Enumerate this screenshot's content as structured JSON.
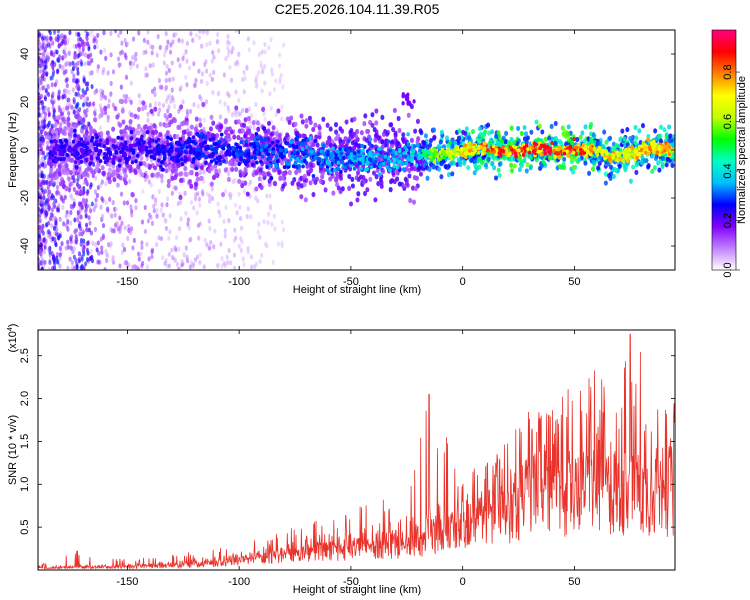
{
  "chart_data": [
    {
      "type": "heatmap",
      "title": "C2E5.2026.104.11.39.R05",
      "xlabel": "Height of straight line (km)",
      "ylabel": "Frequency (Hz)",
      "xlim": [
        -190,
        95
      ],
      "ylim": [
        -50,
        50
      ],
      "xticks": [
        -150,
        -100,
        -50,
        0,
        50
      ],
      "yticks": [
        -40,
        -20,
        0,
        20,
        40
      ],
      "colorbar": {
        "label": "Normalized spectral amplitude",
        "range": [
          0,
          0.97
        ],
        "ticks": [
          "0.0",
          "0.2",
          "0.4",
          "0.6",
          "0.8"
        ],
        "colors": [
          "#ffffff",
          "#c080ff",
          "#8000ff",
          "#0000ff",
          "#00c0ff",
          "#00ffc0",
          "#00ff00",
          "#c0ff00",
          "#ffff00",
          "#ff8000",
          "#ff0000",
          "#ff0080"
        ]
      },
      "ridge": {
        "description_points": [
          {
            "x": -185,
            "freq": 0,
            "amp": 0.25
          },
          {
            "x": -150,
            "freq": 0,
            "amp": 0.25
          },
          {
            "x": -100,
            "freq": 0,
            "amp": 0.3
          },
          {
            "x": -60,
            "freq": -3,
            "amp": 0.35
          },
          {
            "x": -20,
            "freq": -3,
            "amp": 0.4
          },
          {
            "x": -15,
            "freq": -2,
            "amp": 0.6
          },
          {
            "x": 0,
            "freq": 0,
            "amp": 0.75
          },
          {
            "x": 20,
            "freq": 0,
            "amp": 0.9
          },
          {
            "x": 50,
            "freq": 0,
            "amp": 0.9
          },
          {
            "x": 70,
            "freq": -2,
            "amp": 0.75
          },
          {
            "x": 95,
            "freq": 1,
            "amp": 0.8
          }
        ]
      }
    },
    {
      "type": "line",
      "title": "",
      "xlabel": "Height of straight line (km)",
      "ylabel": "SNR (10 * v/v)",
      "y_multiplier": "(x10",
      "y_multiplier_exp": "4",
      "y_multiplier_close": ")",
      "xlim": [
        -190,
        95
      ],
      "ylim": [
        0,
        2.8
      ],
      "xticks": [
        -150,
        -100,
        -50,
        0,
        50
      ],
      "yticks": [
        "0.5",
        "1.0",
        "1.5",
        "2.0",
        "2.5"
      ],
      "color": "#e8322a",
      "envelope": [
        {
          "x": -190,
          "base": 0.03,
          "spike": 0.06
        },
        {
          "x": -175,
          "base": 0.04,
          "spike": 0.25
        },
        {
          "x": -150,
          "base": 0.05,
          "spike": 0.12
        },
        {
          "x": -125,
          "base": 0.08,
          "spike": 0.2
        },
        {
          "x": -100,
          "base": 0.15,
          "spike": 0.3
        },
        {
          "x": -75,
          "base": 0.25,
          "spike": 0.5
        },
        {
          "x": -50,
          "base": 0.35,
          "spike": 0.75
        },
        {
          "x": -25,
          "base": 0.45,
          "spike": 0.9
        },
        {
          "x": -15,
          "base": 0.55,
          "spike": 2.05
        },
        {
          "x": 0,
          "base": 0.75,
          "spike": 1.1
        },
        {
          "x": 20,
          "base": 1.0,
          "spike": 1.5
        },
        {
          "x": 30,
          "base": 1.25,
          "spike": 1.9
        },
        {
          "x": 50,
          "base": 1.3,
          "spike": 2.15
        },
        {
          "x": 75,
          "base": 1.3,
          "spike": 2.75
        },
        {
          "x": 95,
          "base": 1.25,
          "spike": 1.95
        }
      ]
    }
  ]
}
